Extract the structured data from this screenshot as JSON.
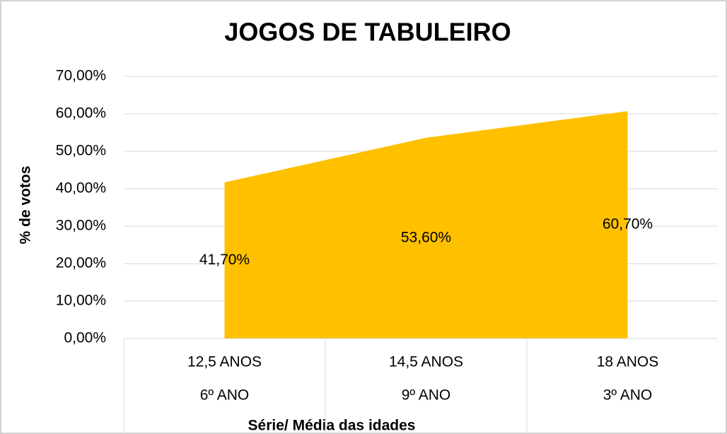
{
  "chart_data": {
    "type": "area",
    "title": "JOGOS DE TABULEIRO",
    "x_label": "Série/ Média das idades",
    "y_label": "% de votos",
    "categories": [
      "12,5 ANOS",
      "14,5 ANOS",
      "18 ANOS"
    ],
    "category_groups": [
      "6º ANO",
      "9º ANO",
      "3º ANO"
    ],
    "values": [
      41.7,
      53.6,
      60.7
    ],
    "value_labels": [
      "41,70%",
      "53,60%",
      "60,70%"
    ],
    "color": "#ffc000",
    "ylim": [
      0,
      70
    ],
    "yticks": [
      {
        "value": 0,
        "label": "0,00%"
      },
      {
        "value": 10,
        "label": "10,00%"
      },
      {
        "value": 20,
        "label": "20,00%"
      },
      {
        "value": 30,
        "label": "30,00%"
      },
      {
        "value": 40,
        "label": "40,00%"
      },
      {
        "value": 50,
        "label": "50,00%"
      },
      {
        "value": 60,
        "label": "60,00%"
      },
      {
        "value": 70,
        "label": "70,00%"
      }
    ],
    "grid": true
  }
}
